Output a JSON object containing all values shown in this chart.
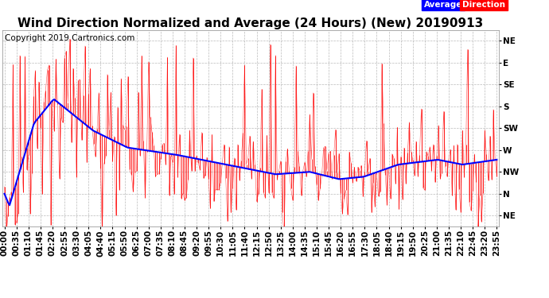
{
  "title": "Wind Direction Normalized and Average (24 Hours) (New) 20190913",
  "copyright": "Copyright 2019 Cartronics.com",
  "legend_average": "Average",
  "legend_direction": "Direction",
  "y_tick_labels": [
    "NE",
    "N",
    "NW",
    "W",
    "SW",
    "S",
    "SE",
    "E",
    "NE"
  ],
  "y_tick_values": [
    360,
    315,
    270,
    225,
    180,
    135,
    90,
    45,
    0
  ],
  "background_color": "#ffffff",
  "plot_bg_color": "#ffffff",
  "grid_color": "#aaaaaa",
  "bar_color": "#ff0000",
  "line_color": "#0000ff",
  "title_fontsize": 11,
  "copyright_fontsize": 7.5,
  "tick_label_fontsize": 7.5,
  "ylim_min": -22.5,
  "ylim_max": 382.5
}
